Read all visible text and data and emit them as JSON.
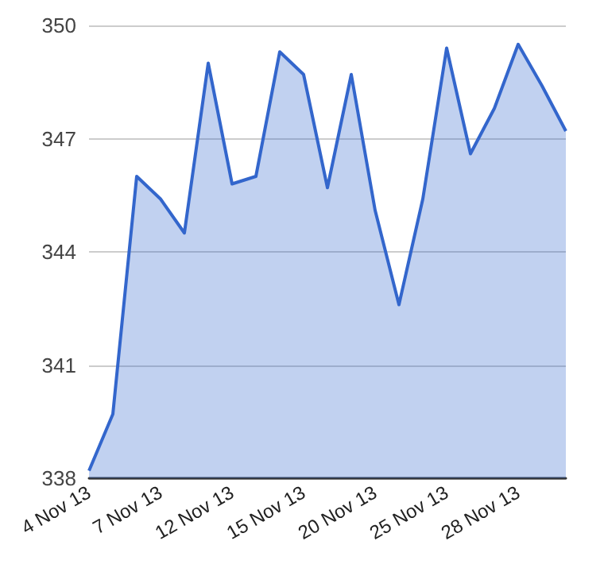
{
  "chart_data": {
    "type": "area",
    "categories": [
      "4 Nov 13",
      null,
      null,
      "7 Nov 13",
      null,
      null,
      "12 Nov 13",
      null,
      null,
      "15 Nov 13",
      null,
      null,
      "20 Nov 13",
      null,
      null,
      "25 Nov 13",
      null,
      null,
      "28 Nov 13",
      null,
      null
    ],
    "series": [
      {
        "color": "#3366cc",
        "values": [
          338.2,
          339.7,
          346.0,
          345.4,
          344.5,
          349.0,
          345.8,
          346.0,
          349.3,
          348.7,
          345.7,
          348.7,
          345.1,
          342.6,
          345.4,
          349.4,
          346.6,
          347.8,
          349.5,
          348.4,
          347.2
        ]
      }
    ],
    "ylim": [
      338,
      350
    ],
    "yticks": [
      338,
      341,
      344,
      347,
      350
    ],
    "grid": "y",
    "marker": "none",
    "line_style": "solid"
  }
}
